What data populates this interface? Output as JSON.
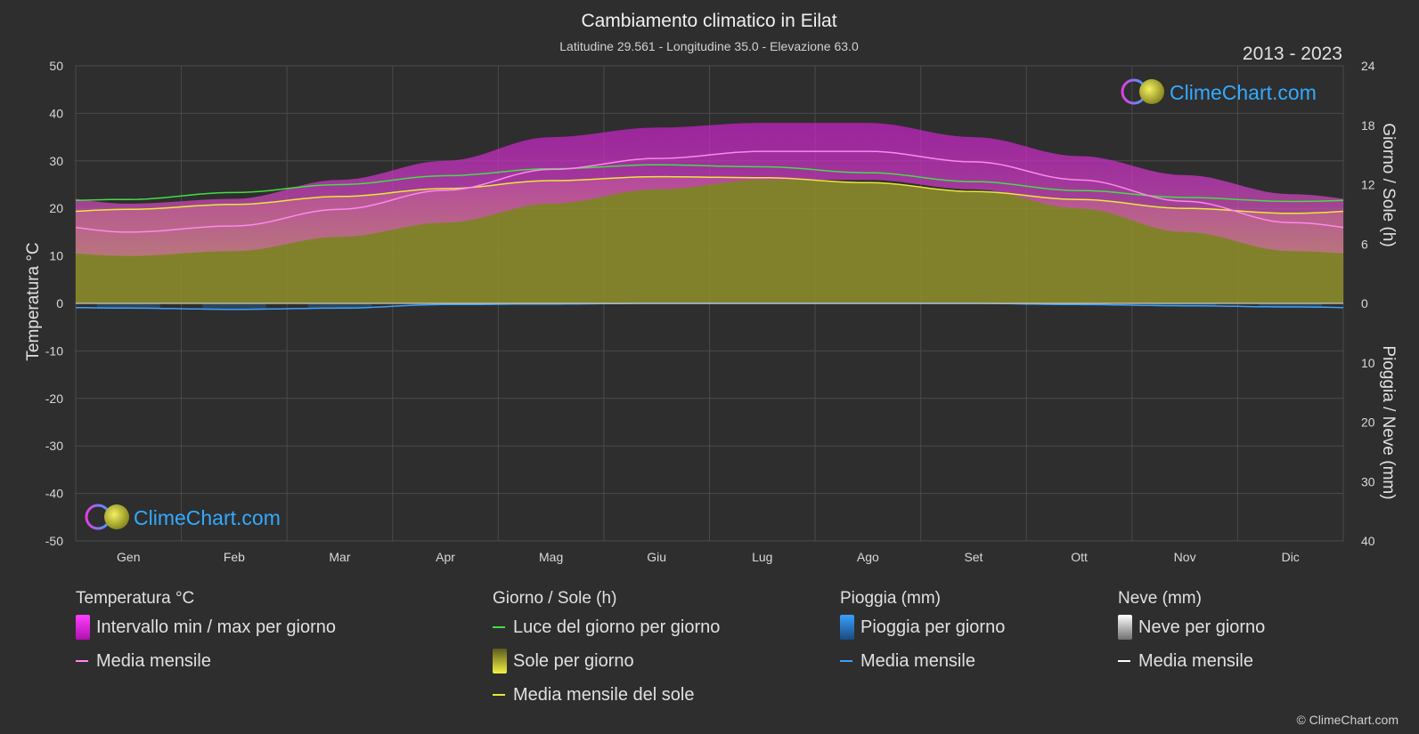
{
  "header": {
    "title": "Cambiamento climatico in Eilat",
    "subtitle": "Latitudine 29.561 - Longitudine 35.0 - Elevazione 63.0",
    "year_range": "2013 - 2023"
  },
  "watermark": {
    "text": "ClimeChart.com"
  },
  "copyright": "© ClimeChart.com",
  "colors": {
    "background": "#2e2e2e",
    "temp_range": "#d61fd6",
    "temp_mean": "#ff88ee",
    "daylight": "#44dd44",
    "sunshine_fill": "#8f8f2a",
    "sunshine_mean": "#e8e83a",
    "rain": "#2a8fe0",
    "rain_mean": "#3aa0ff",
    "snow_mean": "#ffffff",
    "brand": "#33aaff"
  },
  "chart_data": {
    "type": "area",
    "x_categories": [
      "Gen",
      "Feb",
      "Mar",
      "Apr",
      "Mag",
      "Giu",
      "Lug",
      "Ago",
      "Set",
      "Ott",
      "Nov",
      "Dic"
    ],
    "left_axis": {
      "label": "Temperatura °C",
      "ylim": [
        -50,
        50
      ],
      "ticks": [
        50,
        40,
        30,
        20,
        10,
        0,
        -10,
        -20,
        -30,
        -40,
        -50
      ]
    },
    "right_axis_top": {
      "label": "Giorno / Sole (h)",
      "ylim": [
        0,
        24
      ],
      "ticks": [
        24,
        18,
        12,
        6,
        0
      ]
    },
    "right_axis_bottom": {
      "label": "Pioggia / Neve (mm)",
      "ylim": [
        0,
        40
      ],
      "ticks": [
        0,
        10,
        20,
        30,
        40
      ]
    },
    "grid": true,
    "series": [
      {
        "name": "Media mensile",
        "group": "Temperatura °C",
        "axis": "temperature",
        "values": [
          15.0,
          16.3,
          19.8,
          23.8,
          28.2,
          30.5,
          32.0,
          32.0,
          29.8,
          26.0,
          21.5,
          17.0
        ]
      },
      {
        "name": "Intervallo min / max per giorno",
        "group": "Temperatura °C",
        "axis": "temperature",
        "min": [
          10,
          11,
          14,
          17,
          21,
          24,
          26,
          26,
          24,
          20,
          15,
          11
        ],
        "max": [
          21,
          22,
          26,
          30,
          35,
          37,
          38,
          38,
          35,
          31,
          27,
          23
        ]
      },
      {
        "name": "Luce del giorno per giorno",
        "group": "Giorno / Sole (h)",
        "axis": "hours",
        "values": [
          10.5,
          11.2,
          12.0,
          12.9,
          13.6,
          14.0,
          13.8,
          13.2,
          12.3,
          11.4,
          10.7,
          10.3
        ]
      },
      {
        "name": "Media mensile del sole",
        "group": "Giorno / Sole (h)",
        "axis": "hours",
        "values": [
          9.5,
          10.0,
          10.8,
          11.6,
          12.4,
          12.8,
          12.7,
          12.2,
          11.3,
          10.5,
          9.6,
          9.1
        ]
      },
      {
        "name": "Media mensile",
        "group": "Pioggia (mm)",
        "axis": "precipitation",
        "values": [
          0.8,
          1.0,
          0.8,
          0.2,
          0.1,
          0.0,
          0.0,
          0.0,
          0.0,
          0.2,
          0.4,
          0.6
        ]
      },
      {
        "name": "Media mensile",
        "group": "Neve (mm)",
        "axis": "precipitation",
        "values": [
          0,
          0,
          0,
          0,
          0,
          0,
          0,
          0,
          0,
          0,
          0,
          0
        ]
      }
    ]
  },
  "legend": {
    "groups": [
      {
        "title": "Temperatura °C",
        "items": [
          {
            "label": "Intervallo min / max per giorno",
            "swatch": "box",
            "color": "#d61fd6"
          },
          {
            "label": "Media mensile",
            "swatch": "line",
            "color": "#ff88ee"
          }
        ]
      },
      {
        "title": "Giorno / Sole (h)",
        "items": [
          {
            "label": "Luce del giorno per giorno",
            "swatch": "line",
            "color": "#44dd44"
          },
          {
            "label": "Sole per giorno",
            "swatch": "box",
            "color": "#c8c83a"
          },
          {
            "label": "Media mensile del sole",
            "swatch": "line",
            "color": "#e8e83a"
          }
        ]
      },
      {
        "title": "Pioggia (mm)",
        "items": [
          {
            "label": "Pioggia per giorno",
            "swatch": "box",
            "color": "#2a8fe0"
          },
          {
            "label": "Media mensile",
            "swatch": "line",
            "color": "#3aa0ff"
          }
        ]
      },
      {
        "title": "Neve (mm)",
        "items": [
          {
            "label": "Neve per giorno",
            "swatch": "box",
            "color": "#dddddd"
          },
          {
            "label": "Media mensile",
            "swatch": "line",
            "color": "#ffffff"
          }
        ]
      }
    ]
  }
}
